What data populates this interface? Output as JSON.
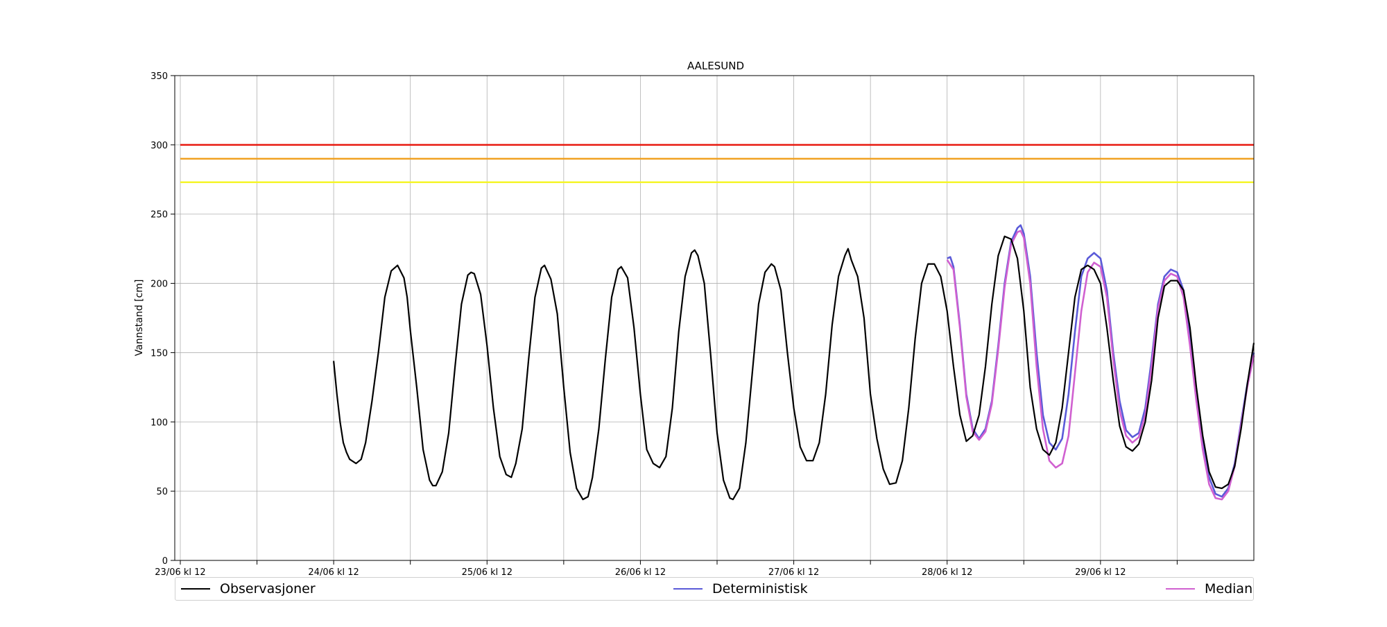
{
  "chart_data": {
    "type": "line",
    "title": "AALESUND",
    "xlabel": "",
    "ylabel": "Vannstand [cm]",
    "x_unit": "hours since 23/06 kl 12",
    "xlim": [
      0,
      168
    ],
    "ylim": [
      0,
      350
    ],
    "yticks": [
      0,
      50,
      100,
      150,
      200,
      250,
      300,
      350
    ],
    "xticks": [
      {
        "x": 0,
        "label": "23/06 kl 12"
      },
      {
        "x": 12,
        "label": ""
      },
      {
        "x": 24,
        "label": "24/06 kl 12"
      },
      {
        "x": 36,
        "label": ""
      },
      {
        "x": 48,
        "label": "25/06 kl 12"
      },
      {
        "x": 60,
        "label": ""
      },
      {
        "x": 72,
        "label": "26/06 kl 12"
      },
      {
        "x": 84,
        "label": ""
      },
      {
        "x": 96,
        "label": "27/06 kl 12"
      },
      {
        "x": 108,
        "label": ""
      },
      {
        "x": 120,
        "label": "28/06 kl 12"
      },
      {
        "x": 132,
        "label": ""
      },
      {
        "x": 144,
        "label": "29/06 kl 12"
      },
      {
        "x": 156,
        "label": ""
      }
    ],
    "grid": true,
    "legend_position": "bottom",
    "thresholds": [
      {
        "value": 300,
        "color": "#e8170d"
      },
      {
        "value": 290,
        "color": "#f0a020"
      },
      {
        "value": 273,
        "color": "#f5f52a"
      }
    ],
    "series": [
      {
        "name": "Observasjoner",
        "color": "#000000",
        "points": [
          [
            24,
            144
          ],
          [
            24.5,
            120
          ],
          [
            25,
            100
          ],
          [
            25.5,
            85
          ],
          [
            26,
            78
          ],
          [
            26.5,
            73
          ],
          [
            27.5,
            70
          ],
          [
            28.3,
            73
          ],
          [
            29,
            85
          ],
          [
            30,
            115
          ],
          [
            31,
            150
          ],
          [
            32,
            190
          ],
          [
            33,
            209
          ],
          [
            34,
            213
          ],
          [
            35,
            204
          ],
          [
            35.5,
            190
          ],
          [
            36,
            166
          ],
          [
            37,
            125
          ],
          [
            38,
            80
          ],
          [
            39,
            58
          ],
          [
            39.5,
            54
          ],
          [
            40,
            54
          ],
          [
            41,
            64
          ],
          [
            42,
            92
          ],
          [
            43,
            140
          ],
          [
            44,
            185
          ],
          [
            45,
            206
          ],
          [
            45.5,
            208
          ],
          [
            46,
            207
          ],
          [
            47,
            192
          ],
          [
            48,
            155
          ],
          [
            49,
            110
          ],
          [
            50,
            75
          ],
          [
            51,
            62
          ],
          [
            51.8,
            60
          ],
          [
            52.5,
            70
          ],
          [
            53.5,
            95
          ],
          [
            54.5,
            145
          ],
          [
            55.5,
            190
          ],
          [
            56.5,
            211
          ],
          [
            57,
            213
          ],
          [
            58,
            203
          ],
          [
            59,
            178
          ],
          [
            60,
            125
          ],
          [
            61,
            78
          ],
          [
            62,
            52
          ],
          [
            63,
            44
          ],
          [
            63.8,
            46
          ],
          [
            64.5,
            60
          ],
          [
            65.5,
            95
          ],
          [
            66.5,
            145
          ],
          [
            67.5,
            190
          ],
          [
            68.5,
            210
          ],
          [
            69,
            212
          ],
          [
            70,
            204
          ],
          [
            71,
            168
          ],
          [
            72,
            120
          ],
          [
            73,
            80
          ],
          [
            74,
            70
          ],
          [
            75,
            67
          ],
          [
            76,
            75
          ],
          [
            77,
            110
          ],
          [
            78,
            165
          ],
          [
            79,
            205
          ],
          [
            80,
            222
          ],
          [
            80.5,
            224
          ],
          [
            81,
            220
          ],
          [
            82,
            200
          ],
          [
            83,
            148
          ],
          [
            84,
            92
          ],
          [
            85,
            58
          ],
          [
            86,
            45
          ],
          [
            86.5,
            44
          ],
          [
            87.5,
            52
          ],
          [
            88.5,
            85
          ],
          [
            89.5,
            135
          ],
          [
            90.5,
            185
          ],
          [
            91.5,
            208
          ],
          [
            92.5,
            214
          ],
          [
            93,
            212
          ],
          [
            94,
            195
          ],
          [
            95,
            150
          ],
          [
            96,
            110
          ],
          [
            97,
            82
          ],
          [
            98,
            72
          ],
          [
            99,
            72
          ],
          [
            100,
            85
          ],
          [
            101,
            120
          ],
          [
            102,
            170
          ],
          [
            103,
            205
          ],
          [
            104,
            220
          ],
          [
            104.5,
            225
          ],
          [
            105,
            217
          ],
          [
            106,
            205
          ],
          [
            107,
            175
          ],
          [
            108,
            120
          ],
          [
            109,
            88
          ],
          [
            110,
            66
          ],
          [
            111,
            55
          ],
          [
            112,
            56
          ],
          [
            113,
            72
          ],
          [
            114,
            110
          ],
          [
            115,
            160
          ],
          [
            116,
            200
          ],
          [
            117,
            214
          ],
          [
            118,
            214
          ],
          [
            119,
            205
          ],
          [
            120,
            180
          ],
          [
            121,
            140
          ],
          [
            122,
            105
          ],
          [
            123,
            86
          ],
          [
            124,
            90
          ],
          [
            125,
            105
          ],
          [
            126,
            140
          ],
          [
            127,
            185
          ],
          [
            128,
            220
          ],
          [
            129,
            234
          ],
          [
            130,
            232
          ],
          [
            131,
            218
          ],
          [
            132,
            180
          ],
          [
            133,
            125
          ],
          [
            134,
            95
          ],
          [
            135,
            80
          ],
          [
            136,
            76
          ],
          [
            137,
            85
          ],
          [
            138,
            110
          ],
          [
            139,
            150
          ],
          [
            140,
            190
          ],
          [
            141,
            210
          ],
          [
            142,
            213
          ],
          [
            143,
            210
          ],
          [
            144,
            200
          ],
          [
            145,
            168
          ],
          [
            146,
            130
          ],
          [
            147,
            97
          ],
          [
            148,
            82
          ],
          [
            149,
            79
          ],
          [
            150,
            84
          ],
          [
            151,
            100
          ],
          [
            152,
            130
          ],
          [
            153,
            175
          ],
          [
            154,
            198
          ],
          [
            155,
            202
          ],
          [
            156,
            202
          ],
          [
            157,
            195
          ],
          [
            158,
            168
          ],
          [
            159,
            125
          ],
          [
            160,
            90
          ],
          [
            161,
            64
          ],
          [
            162,
            53
          ],
          [
            163,
            52
          ],
          [
            164,
            55
          ],
          [
            165,
            68
          ],
          [
            166,
            95
          ],
          [
            167,
            128
          ],
          [
            168,
            157
          ]
        ]
      },
      {
        "name": "Deterministisk",
        "color": "#5a5ad8",
        "points": [
          [
            120,
            218
          ],
          [
            120.5,
            219
          ],
          [
            121,
            212
          ],
          [
            122,
            170
          ],
          [
            123,
            120
          ],
          [
            124,
            95
          ],
          [
            125,
            88
          ],
          [
            126,
            95
          ],
          [
            127,
            115
          ],
          [
            128,
            155
          ],
          [
            129,
            200
          ],
          [
            130,
            230
          ],
          [
            131,
            240
          ],
          [
            131.5,
            242
          ],
          [
            132,
            236
          ],
          [
            133,
            205
          ],
          [
            134,
            150
          ],
          [
            135,
            105
          ],
          [
            136,
            85
          ],
          [
            137,
            80
          ],
          [
            138,
            88
          ],
          [
            139,
            120
          ],
          [
            140,
            165
          ],
          [
            141,
            205
          ],
          [
            142,
            218
          ],
          [
            143,
            222
          ],
          [
            144,
            218
          ],
          [
            145,
            195
          ],
          [
            146,
            150
          ],
          [
            147,
            115
          ],
          [
            148,
            94
          ],
          [
            149,
            89
          ],
          [
            150,
            92
          ],
          [
            151,
            110
          ],
          [
            152,
            145
          ],
          [
            153,
            185
          ],
          [
            154,
            205
          ],
          [
            155,
            210
          ],
          [
            156,
            208
          ],
          [
            157,
            195
          ],
          [
            158,
            160
          ],
          [
            159,
            120
          ],
          [
            160,
            85
          ],
          [
            161,
            60
          ],
          [
            162,
            48
          ],
          [
            163,
            46
          ],
          [
            164,
            52
          ],
          [
            165,
            70
          ],
          [
            166,
            100
          ],
          [
            167,
            128
          ],
          [
            168,
            150
          ]
        ]
      },
      {
        "name": "Median",
        "color": "#d060d0",
        "points": [
          [
            120,
            217
          ],
          [
            121,
            210
          ],
          [
            122,
            168
          ],
          [
            123,
            118
          ],
          [
            124,
            93
          ],
          [
            125,
            87
          ],
          [
            126,
            93
          ],
          [
            127,
            113
          ],
          [
            128,
            152
          ],
          [
            129,
            197
          ],
          [
            130,
            228
          ],
          [
            131,
            237
          ],
          [
            131.5,
            238
          ],
          [
            132,
            233
          ],
          [
            133,
            200
          ],
          [
            134,
            140
          ],
          [
            135,
            95
          ],
          [
            136,
            72
          ],
          [
            137,
            67
          ],
          [
            138,
            70
          ],
          [
            139,
            90
          ],
          [
            140,
            135
          ],
          [
            141,
            180
          ],
          [
            142,
            208
          ],
          [
            143,
            215
          ],
          [
            144,
            212
          ],
          [
            145,
            190
          ],
          [
            146,
            145
          ],
          [
            147,
            108
          ],
          [
            148,
            90
          ],
          [
            149,
            85
          ],
          [
            150,
            89
          ],
          [
            151,
            105
          ],
          [
            152,
            140
          ],
          [
            153,
            182
          ],
          [
            154,
            202
          ],
          [
            155,
            207
          ],
          [
            156,
            205
          ],
          [
            157,
            190
          ],
          [
            158,
            155
          ],
          [
            159,
            115
          ],
          [
            160,
            80
          ],
          [
            161,
            55
          ],
          [
            162,
            45
          ],
          [
            163,
            44
          ],
          [
            164,
            50
          ],
          [
            165,
            68
          ],
          [
            166,
            98
          ],
          [
            167,
            126
          ],
          [
            168,
            148
          ]
        ]
      }
    ]
  }
}
